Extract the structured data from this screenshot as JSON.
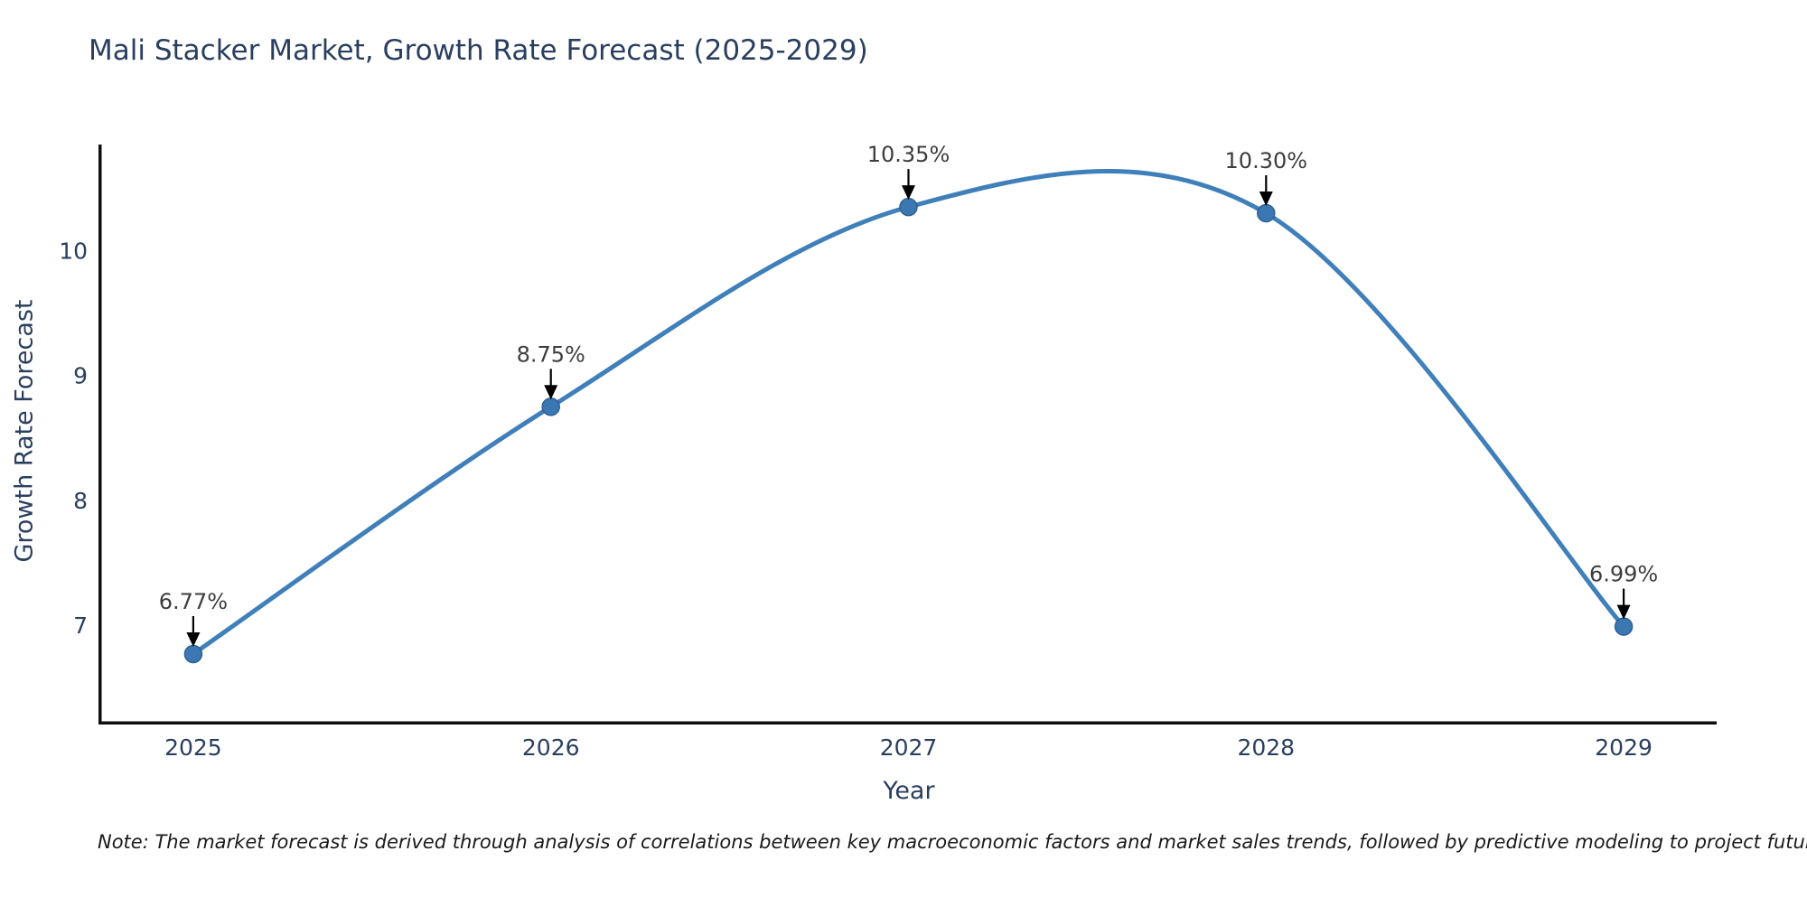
{
  "title": {
    "text": "Mali Stacker Market, Growth Rate Forecast (2025-2029)",
    "color": "#2a3f5f"
  },
  "note": {
    "text": "Note: The market forecast is derived through analysis of correlations between key macroeconomic factors and market sales trends, followed by predictive modeling to project future sales"
  },
  "chart_data": {
    "type": "line",
    "title": "Mali Stacker Market, Growth Rate Forecast (2025-2029)",
    "xlabel": "Year",
    "ylabel": "Growth Rate Forecast",
    "x": [
      2025,
      2026,
      2027,
      2028,
      2029
    ],
    "values": [
      6.77,
      8.75,
      10.35,
      10.3,
      6.99
    ],
    "point_labels": [
      "6.77%",
      "8.75%",
      "10.35%",
      "10.30%",
      "6.99%"
    ],
    "x_tick_labels": [
      "2025",
      "2026",
      "2027",
      "2028",
      "2029"
    ],
    "y_tick_values": [
      7,
      8,
      9,
      10
    ],
    "y_tick_labels": [
      "7",
      "8",
      "9",
      "10"
    ],
    "xlim": [
      2024.74,
      2029.26
    ],
    "ylim": [
      6.22,
      10.85
    ],
    "grid": false,
    "legend_position": "none",
    "line_shape": "spline",
    "line_color": "#3f7fba",
    "marker_fill": "#3a77b3",
    "marker_stroke": "#2e6194",
    "annotation_color": "#3d3d3d",
    "arrow_color": "#000000",
    "axis_line_color": "#0f0f0f"
  }
}
